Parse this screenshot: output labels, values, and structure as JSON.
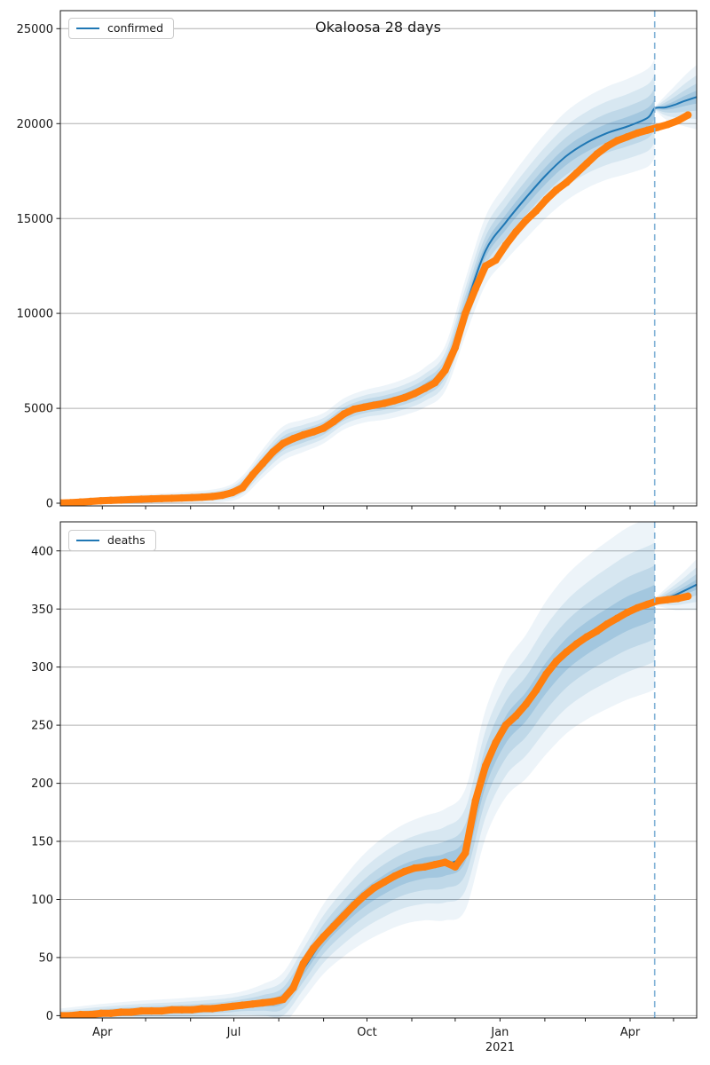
{
  "title": "Okaloosa 28 days",
  "forecast_start_day": 411,
  "colors": {
    "observed": "#ff7f0e",
    "predicted": "#1f77b4",
    "band": "#1f77b4",
    "forecast_line": "#7fb0d6",
    "grid": "#b0b0b0",
    "axis": "#1a1a1a",
    "text": "#1a1a1a"
  },
  "x_axis": {
    "domain_days": [
      0,
      440
    ],
    "month_tick_days": [
      29,
      59,
      90,
      120,
      151,
      182,
      212,
      243,
      273,
      304,
      335,
      363,
      394,
      424
    ],
    "major_ticks": [
      {
        "day": 29,
        "label": "Apr"
      },
      {
        "day": 120,
        "label": "Jul"
      },
      {
        "day": 212,
        "label": "Oct"
      },
      {
        "day": 304,
        "label": "Jan"
      },
      {
        "day": 394,
        "label": "Apr"
      }
    ],
    "year_label": "2021",
    "year_under_day": 304
  },
  "chart_data": [
    {
      "type": "line",
      "name": "confirmed",
      "legend_label": "confirmed",
      "grid": "horizontal",
      "ylim": [
        -140,
        25950
      ],
      "yticks": [
        0,
        5000,
        10000,
        15000,
        20000,
        25000
      ],
      "observed": {
        "days": [
          0,
          7,
          14,
          21,
          28,
          35,
          42,
          49,
          56,
          63,
          70,
          77,
          84,
          91,
          98,
          105,
          112,
          119,
          126,
          133,
          140,
          147,
          154,
          161,
          168,
          175,
          182,
          189,
          196,
          203,
          210,
          217,
          224,
          231,
          238,
          245,
          252,
          259,
          266,
          273,
          280,
          287,
          294,
          301,
          308,
          315,
          322,
          329,
          336,
          343,
          350,
          357,
          364,
          371,
          378,
          385,
          392,
          399,
          406,
          413,
          420,
          427,
          434
        ],
        "values": [
          15,
          30,
          60,
          95,
          125,
          150,
          170,
          190,
          210,
          228,
          243,
          258,
          275,
          295,
          318,
          350,
          420,
          560,
          820,
          1500,
          2100,
          2700,
          3150,
          3400,
          3600,
          3760,
          3950,
          4300,
          4700,
          4950,
          5060,
          5160,
          5260,
          5400,
          5560,
          5780,
          6050,
          6350,
          7000,
          8200,
          10000,
          11300,
          12500,
          12800,
          13600,
          14300,
          14900,
          15400,
          16000,
          16500,
          16900,
          17400,
          17900,
          18400,
          18800,
          19100,
          19300,
          19500,
          19650,
          19800,
          19950,
          20150,
          20450
        ]
      },
      "predicted": {
        "days": [
          0,
          14,
          28,
          42,
          56,
          70,
          84,
          98,
          112,
          126,
          140,
          154,
          168,
          182,
          196,
          210,
          224,
          238,
          252,
          266,
          280,
          294,
          308,
          322,
          336,
          350,
          364,
          378,
          392,
          406,
          411,
          418,
          425,
          432,
          440
        ],
        "values": [
          20,
          70,
          130,
          175,
          215,
          248,
          280,
          325,
          440,
          900,
          2100,
          3150,
          3550,
          3950,
          4700,
          5100,
          5300,
          5600,
          6100,
          7100,
          10300,
          13300,
          14800,
          16100,
          17300,
          18300,
          19000,
          19500,
          19850,
          20300,
          20800,
          20850,
          21000,
          21200,
          21400
        ]
      },
      "uncertainty": {
        "days": [
          0,
          28,
          56,
          84,
          112,
          126,
          140,
          154,
          168,
          182,
          196,
          210,
          224,
          238,
          252,
          266,
          280,
          294,
          308,
          322,
          336,
          350,
          364,
          378,
          392,
          406,
          411
        ],
        "outer_halfwidths": [
          150,
          200,
          250,
          300,
          380,
          550,
          750,
          900,
          850,
          800,
          820,
          850,
          900,
          950,
          1050,
          1200,
          1500,
          1800,
          2000,
          2150,
          2250,
          2350,
          2400,
          2450,
          2500,
          2580,
          2600
        ]
      },
      "forecast_uncertainty": {
        "days": [
          411,
          418,
          425,
          432,
          440
        ],
        "outer_halfwidths": [
          80,
          600,
          1000,
          1350,
          1700
        ]
      }
    },
    {
      "type": "line",
      "name": "deaths",
      "legend_label": "deaths",
      "grid": "horizontal",
      "ylim": [
        -2,
        425
      ],
      "yticks": [
        0,
        50,
        100,
        150,
        200,
        250,
        300,
        350,
        400
      ],
      "observed": {
        "days": [
          0,
          7,
          14,
          21,
          28,
          35,
          42,
          49,
          56,
          63,
          70,
          77,
          84,
          91,
          98,
          105,
          112,
          119,
          126,
          133,
          140,
          147,
          154,
          161,
          168,
          175,
          182,
          189,
          196,
          203,
          210,
          217,
          224,
          231,
          238,
          245,
          252,
          259,
          266,
          273,
          280,
          287,
          294,
          301,
          308,
          315,
          322,
          329,
          336,
          343,
          350,
          357,
          364,
          371,
          378,
          385,
          392,
          399,
          406,
          413,
          420,
          427,
          434
        ],
        "values": [
          0,
          0,
          1,
          1,
          2,
          2,
          3,
          3,
          4,
          4,
          4,
          5,
          5,
          5,
          6,
          6,
          7,
          8,
          9,
          10,
          11,
          12,
          14,
          24,
          45,
          58,
          68,
          77,
          86,
          95,
          103,
          110,
          115,
          120,
          124,
          127,
          128,
          130,
          132,
          128,
          140,
          185,
          215,
          235,
          250,
          258,
          268,
          280,
          294,
          305,
          313,
          320,
          326,
          331,
          337,
          342,
          347,
          351,
          354,
          357,
          358,
          359,
          361
        ]
      },
      "predicted": {
        "days": [
          0,
          14,
          28,
          42,
          56,
          70,
          84,
          98,
          112,
          126,
          140,
          154,
          168,
          182,
          196,
          210,
          224,
          238,
          252,
          266,
          280,
          294,
          308,
          322,
          336,
          350,
          364,
          378,
          392,
          406,
          411,
          418,
          425,
          432,
          440
        ],
        "values": [
          0,
          1,
          2,
          3,
          4,
          4,
          5,
          6,
          7,
          9,
          11,
          15,
          40,
          66,
          85,
          101,
          113,
          122,
          127,
          130,
          143,
          208,
          246,
          266,
          291,
          311,
          325,
          336,
          346,
          353,
          356,
          359,
          362,
          366,
          371
        ]
      },
      "uncertainty": {
        "days": [
          0,
          28,
          56,
          84,
          112,
          126,
          140,
          154,
          168,
          182,
          196,
          210,
          224,
          238,
          252,
          266,
          280,
          294,
          308,
          322,
          336,
          350,
          364,
          378,
          392,
          406,
          411
        ],
        "outer_halfwidths": [
          6,
          8,
          9,
          10,
          11,
          12,
          16,
          22,
          26,
          30,
          34,
          38,
          41,
          43,
          45,
          48,
          52,
          55,
          58,
          62,
          66,
          68,
          70,
          72,
          74,
          75,
          75
        ]
      },
      "forecast_uncertainty": {
        "days": [
          411,
          418,
          425,
          432,
          440
        ],
        "outer_halfwidths": [
          3,
          8,
          13,
          17,
          22
        ]
      }
    }
  ]
}
